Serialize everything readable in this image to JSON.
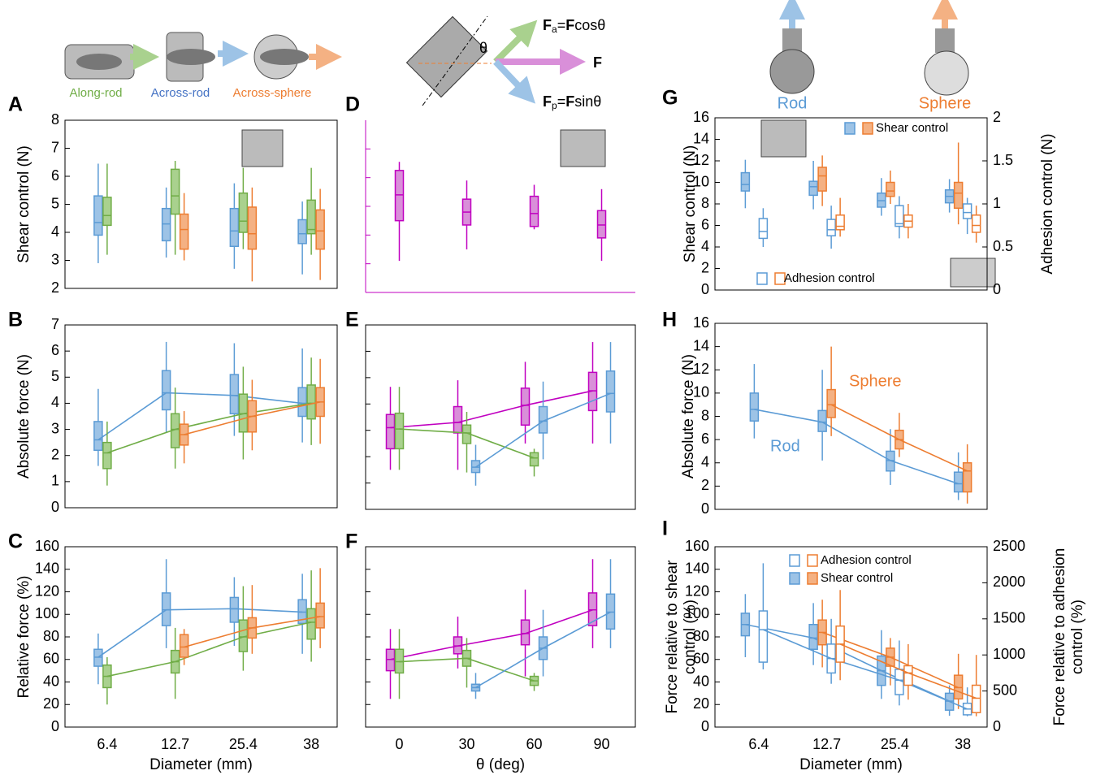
{
  "illustrations": {
    "labels": [
      "Along-rod",
      "Across-rod",
      "Across-sphere"
    ],
    "theta": "θ",
    "fa": [
      "F",
      "a",
      "=",
      "F",
      "cosθ"
    ],
    "f": "F",
    "fp": [
      "F",
      "p",
      "=",
      "F",
      "sinθ"
    ],
    "rod": "Rod",
    "sphere": "Sphere"
  },
  "chart_data": [
    {
      "type": "box",
      "label": "A",
      "ylabel": "Shear control (N)",
      "categories": [
        null,
        null,
        null,
        null
      ],
      "ylim": [
        2,
        8
      ],
      "yticks": [
        2,
        3,
        4,
        5,
        6,
        7,
        8
      ],
      "series": [
        {
          "color": "#5b9bd5",
          "fill": "#9dc3e6",
          "boxes": [
            [
              2.9,
              3.9,
              4.35,
              5.3,
              6.45
            ],
            [
              3.1,
              3.7,
              4.3,
              4.85,
              5.6
            ],
            [
              2.7,
              3.5,
              4.05,
              4.85,
              5.75
            ],
            [
              2.5,
              3.6,
              3.95,
              4.45,
              5.1
            ]
          ]
        },
        {
          "color": "#70ad47",
          "fill": "#a9d18e",
          "boxes": [
            [
              3.2,
              4.25,
              4.6,
              5.25,
              6.45
            ],
            [
              3.2,
              4.65,
              5.3,
              6.25,
              6.55
            ],
            [
              3.4,
              4.0,
              4.4,
              5.4,
              6.3
            ],
            [
              3.2,
              3.95,
              4.1,
              5.15,
              6.3
            ]
          ]
        },
        {
          "color": "#ed7d31",
          "fill": "#f4b183",
          "boxes": [
            null,
            [
              3.0,
              3.4,
              4.1,
              4.65,
              5.4
            ],
            [
              2.25,
              3.4,
              3.95,
              4.9,
              5.6
            ],
            [
              2.3,
              3.4,
              4.05,
              4.8,
              5.55
            ]
          ]
        }
      ]
    },
    {
      "type": "box",
      "label": "B",
      "ylabel": "Absolute force (N)",
      "categories": [
        null,
        null,
        null,
        null
      ],
      "ylim": [
        0,
        7
      ],
      "yticks": [
        0,
        1,
        2,
        3,
        4,
        5,
        6,
        7
      ],
      "series": [
        {
          "color": "#5b9bd5",
          "fill": "#9dc3e6",
          "line": true,
          "boxes": [
            [
              1.6,
              2.2,
              2.6,
              3.3,
              4.55
            ],
            [
              2.9,
              3.75,
              4.4,
              5.25,
              6.35
            ],
            [
              2.75,
              3.6,
              4.3,
              5.1,
              6.3
            ],
            [
              2.5,
              3.5,
              4.0,
              4.6,
              6.1
            ]
          ]
        },
        {
          "color": "#70ad47",
          "fill": "#a9d18e",
          "line": true,
          "boxes": [
            [
              0.85,
              1.5,
              2.1,
              2.5,
              3.3
            ],
            [
              1.5,
              2.3,
              3.0,
              3.6,
              4.6
            ],
            [
              1.85,
              2.9,
              3.6,
              4.35,
              5.4
            ],
            [
              2.4,
              3.4,
              4.0,
              4.7,
              5.75
            ]
          ]
        },
        {
          "color": "#ed7d31",
          "fill": "#f4b183",
          "line": true,
          "boxes": [
            null,
            [
              1.7,
              2.4,
              2.8,
              3.2,
              3.7
            ],
            [
              2.2,
              2.9,
              3.5,
              4.1,
              4.9
            ],
            [
              2.45,
              3.5,
              4.05,
              4.6,
              5.7
            ]
          ]
        }
      ]
    },
    {
      "type": "box",
      "label": "C",
      "ylabel": "Relative force (%)",
      "xlabel": "Diameter (mm)",
      "categories": [
        "6.4",
        "12.7",
        "25.4",
        "38"
      ],
      "ylim": [
        0,
        160
      ],
      "yticks": [
        0,
        20,
        40,
        60,
        80,
        100,
        120,
        140,
        160
      ],
      "series": [
        {
          "color": "#5b9bd5",
          "fill": "#9dc3e6",
          "line": true,
          "boxes": [
            [
              38,
              54,
              62,
              69,
              83
            ],
            [
              70,
              90,
              104,
              119,
              149
            ],
            [
              72,
              93,
              105,
              115,
              133
            ],
            [
              65,
              92,
              102,
              113,
              136
            ]
          ]
        },
        {
          "color": "#70ad47",
          "fill": "#a9d18e",
          "line": true,
          "boxes": [
            [
              20,
              35,
              45,
              55,
              62
            ],
            [
              25,
              48,
              58,
              68,
              88
            ],
            [
              50,
              67,
              80,
              95,
              125
            ],
            [
              58,
              78,
              93,
              105,
              139
            ]
          ]
        },
        {
          "color": "#ed7d31",
          "fill": "#f4b183",
          "line": true,
          "boxes": [
            null,
            [
              55,
              62,
              71,
              82,
              87
            ],
            [
              65,
              79,
              88,
              97,
              126
            ],
            [
              70,
              88,
              98,
              110,
              141
            ]
          ]
        }
      ]
    },
    {
      "type": "box",
      "label": "D",
      "categories": [
        null,
        null,
        null,
        null
      ],
      "ylim": [
        2,
        8
      ],
      "yticks": [
        3,
        4,
        5,
        6,
        7
      ],
      "tick_labels": false,
      "frame": false,
      "axis_color": "#c000c0",
      "series": [
        {
          "color": "#c000c0",
          "fill": "#d98fd9",
          "boxes": [
            [
              3.1,
              4.5,
              5.4,
              6.25,
              6.55
            ],
            [
              3.5,
              4.35,
              4.8,
              5.25,
              5.9
            ],
            [
              4.2,
              4.3,
              4.75,
              5.35,
              5.75
            ],
            [
              3.1,
              3.9,
              4.35,
              4.85,
              5.6
            ]
          ]
        }
      ]
    },
    {
      "type": "box",
      "label": "E",
      "categories": [
        null,
        null,
        null,
        null
      ],
      "ylim": [
        0,
        7
      ],
      "yticks": [
        0,
        1,
        2,
        3,
        4,
        5,
        6,
        7
      ],
      "tick_labels": false,
      "series": [
        {
          "color": "#c000c0",
          "fill": "#d98fd9",
          "line": true,
          "boxes": [
            [
              1.5,
              2.3,
              3.1,
              3.6,
              4.65
            ],
            [
              1.5,
              2.9,
              3.3,
              3.9,
              4.9
            ],
            [
              2.5,
              3.2,
              3.95,
              4.6,
              5.6
            ],
            [
              2.5,
              3.75,
              4.5,
              5.2,
              6.35
            ]
          ]
        },
        {
          "color": "#70ad47",
          "fill": "#a9d18e",
          "line": true,
          "boxes": [
            [
              1.5,
              2.3,
              3.05,
              3.65,
              4.65
            ],
            [
              1.4,
              2.5,
              2.9,
              3.2,
              3.7
            ],
            [
              1.25,
              1.65,
              1.95,
              2.15,
              2.3
            ],
            null
          ]
        },
        {
          "color": "#5b9bd5",
          "fill": "#9dc3e6",
          "line": true,
          "boxes": [
            null,
            [
              0.9,
              1.4,
              1.6,
              1.85,
              2.45
            ],
            [
              1.9,
              2.9,
              3.35,
              3.9,
              4.85
            ],
            [
              2.5,
              3.7,
              4.4,
              5.25,
              6.35
            ]
          ]
        }
      ]
    },
    {
      "type": "box",
      "label": "F",
      "xlabel": "θ (deg)",
      "categories": [
        "0",
        "30",
        "60",
        "90"
      ],
      "ylim": [
        0,
        160
      ],
      "yticks": [
        0,
        20,
        40,
        60,
        80,
        100,
        120,
        140,
        160
      ],
      "tick_labels": false,
      "series": [
        {
          "color": "#c000c0",
          "fill": "#d98fd9",
          "line": true,
          "boxes": [
            [
              25,
              50,
              60,
              69,
              87
            ],
            [
              52,
              65,
              72,
              80,
              98
            ],
            [
              45,
              73,
              83,
              95,
              122
            ],
            [
              70,
              90,
              104,
              119,
              149
            ]
          ]
        },
        {
          "color": "#70ad47",
          "fill": "#a9d18e",
          "line": true,
          "boxes": [
            [
              25,
              48,
              58,
              69,
              87
            ],
            [
              35,
              54,
              61,
              68,
              79
            ],
            [
              32,
              37,
              41,
              45,
              48
            ],
            null
          ]
        },
        {
          "color": "#5b9bd5",
          "fill": "#9dc3e6",
          "line": true,
          "boxes": [
            null,
            [
              25,
              32,
              35,
              38,
              48
            ],
            [
              45,
              60,
              70,
              80,
              104
            ],
            [
              70,
              87,
              102,
              118,
              149
            ]
          ]
        }
      ]
    },
    {
      "type": "box",
      "label": "G",
      "ylabel": "Shear control (N)",
      "y2label": "Adhesion control (N)",
      "categories": [
        null,
        null,
        null,
        null
      ],
      "ylim": [
        0,
        16
      ],
      "yticks": [
        0,
        2,
        4,
        6,
        8,
        10,
        12,
        14,
        16
      ],
      "y2lim": [
        0,
        2
      ],
      "y2ticks": [
        0,
        0.5,
        1,
        1.5,
        2
      ],
      "legend": [
        {
          "label": "Shear control",
          "open": false
        },
        {
          "label": "Adhesion control",
          "open": true
        }
      ],
      "series": [
        {
          "color": "#5b9bd5",
          "fill": "#9dc3e6",
          "boxes": [
            [
              7.6,
              9.2,
              9.8,
              10.9,
              12.1
            ],
            [
              7.5,
              8.8,
              9.6,
              10.1,
              12.0
            ],
            [
              6.9,
              7.7,
              8.3,
              9.0,
              10.4
            ],
            [
              7.2,
              8.1,
              8.7,
              9.3,
              10.3
            ]
          ]
        },
        {
          "color": "#ed7d31",
          "fill": "#f4b183",
          "boxes": [
            null,
            [
              7.8,
              9.2,
              10.6,
              11.4,
              12.5
            ],
            [
              8.0,
              8.7,
              9.2,
              10.0,
              11.1
            ],
            [
              6.1,
              7.6,
              9.0,
              10.0,
              13.7
            ]
          ]
        },
        {
          "color": "#5b9bd5",
          "open": true,
          "axis": "y2",
          "boxes": [
            [
              0.5,
              0.6,
              0.68,
              0.83,
              0.95
            ],
            [
              0.48,
              0.63,
              0.7,
              0.82,
              0.98
            ],
            [
              0.6,
              0.74,
              0.77,
              0.98,
              1.09
            ],
            [
              0.65,
              0.83,
              0.9,
              1.0,
              1.07
            ]
          ]
        },
        {
          "color": "#ed7d31",
          "open": true,
          "axis": "y2",
          "boxes": [
            null,
            [
              0.62,
              0.7,
              0.74,
              0.87,
              1.07
            ],
            [
              0.6,
              0.73,
              0.8,
              0.87,
              1.0
            ],
            [
              0.55,
              0.67,
              0.75,
              0.87,
              0.98
            ]
          ]
        }
      ]
    },
    {
      "type": "box",
      "label": "H",
      "ylabel": "Absolute force (N)",
      "annotations": [
        "Rod",
        "Sphere"
      ],
      "categories": [
        null,
        null,
        null,
        null
      ],
      "ylim": [
        0,
        16
      ],
      "yticks": [
        0,
        2,
        4,
        6,
        8,
        10,
        12,
        14,
        16
      ],
      "series": [
        {
          "color": "#5b9bd5",
          "fill": "#9dc3e6",
          "line": true,
          "boxes": [
            [
              6.1,
              7.6,
              8.6,
              10.0,
              12.5
            ],
            [
              4.2,
              6.7,
              7.5,
              8.5,
              12.0
            ],
            [
              2.1,
              3.3,
              4.2,
              5.0,
              6.9
            ],
            [
              0.8,
              1.5,
              2.2,
              3.2,
              4.9
            ]
          ]
        },
        {
          "color": "#ed7d31",
          "fill": "#f4b183",
          "line": true,
          "boxes": [
            null,
            [
              6.3,
              7.9,
              9.0,
              10.3,
              14.0
            ],
            [
              4.5,
              5.2,
              6.0,
              6.8,
              8.3
            ],
            [
              0.5,
              1.5,
              3.3,
              4.0,
              5.6
            ]
          ]
        }
      ]
    },
    {
      "type": "box",
      "label": "I",
      "ylabel": [
        "Force relative to shear",
        "control (%)"
      ],
      "y2label": [
        "Force relative to adhesion",
        "control (%)"
      ],
      "xlabel": "Diameter (mm)",
      "categories": [
        "6.4",
        "12.7",
        "25.4",
        "38"
      ],
      "ylim": [
        0,
        160
      ],
      "yticks": [
        0,
        20,
        40,
        60,
        80,
        100,
        120,
        140,
        160
      ],
      "y2lim": [
        0,
        2500
      ],
      "y2ticks": [
        0,
        500,
        1000,
        1500,
        2000,
        2500
      ],
      "legend": [
        {
          "label": "Adhesion control",
          "open": true
        },
        {
          "label": "Shear control",
          "open": false
        }
      ],
      "series": [
        {
          "color": "#5b9bd5",
          "fill": "#9dc3e6",
          "line": true,
          "boxes": [
            [
              62,
              81,
              91,
              101,
              118
            ],
            [
              55,
              69,
              79,
              91,
              110
            ],
            [
              25,
              37,
              50,
              63,
              86
            ],
            [
              10,
              15,
              23,
              30,
              37
            ]
          ]
        },
        {
          "color": "#ed7d31",
          "fill": "#f4b183",
          "line": true,
          "boxes": [
            null,
            [
              53,
              73,
              84,
              95,
              113
            ],
            [
              37,
              54,
              62,
              70,
              79
            ],
            [
              16,
              25,
              35,
              46,
              65
            ]
          ]
        },
        {
          "color": "#5b9bd5",
          "open": true,
          "axis": "y2",
          "line": true,
          "boxes": [
            [
              800,
              900,
              1350,
              1610,
              2270
            ],
            [
              600,
              750,
              950,
              1150,
              1500
            ],
            [
              300,
              450,
              650,
              800,
              1200
            ],
            [
              150,
              170,
              250,
              330,
              550
            ]
          ]
        },
        {
          "color": "#ed7d31",
          "open": true,
          "axis": "y2",
          "line": true,
          "boxes": [
            null,
            [
              650,
              900,
              1150,
              1400,
              1900
            ],
            [
              380,
              580,
              750,
              850,
              1150
            ],
            [
              150,
              200,
              400,
              580,
              1000
            ]
          ]
        }
      ]
    }
  ]
}
